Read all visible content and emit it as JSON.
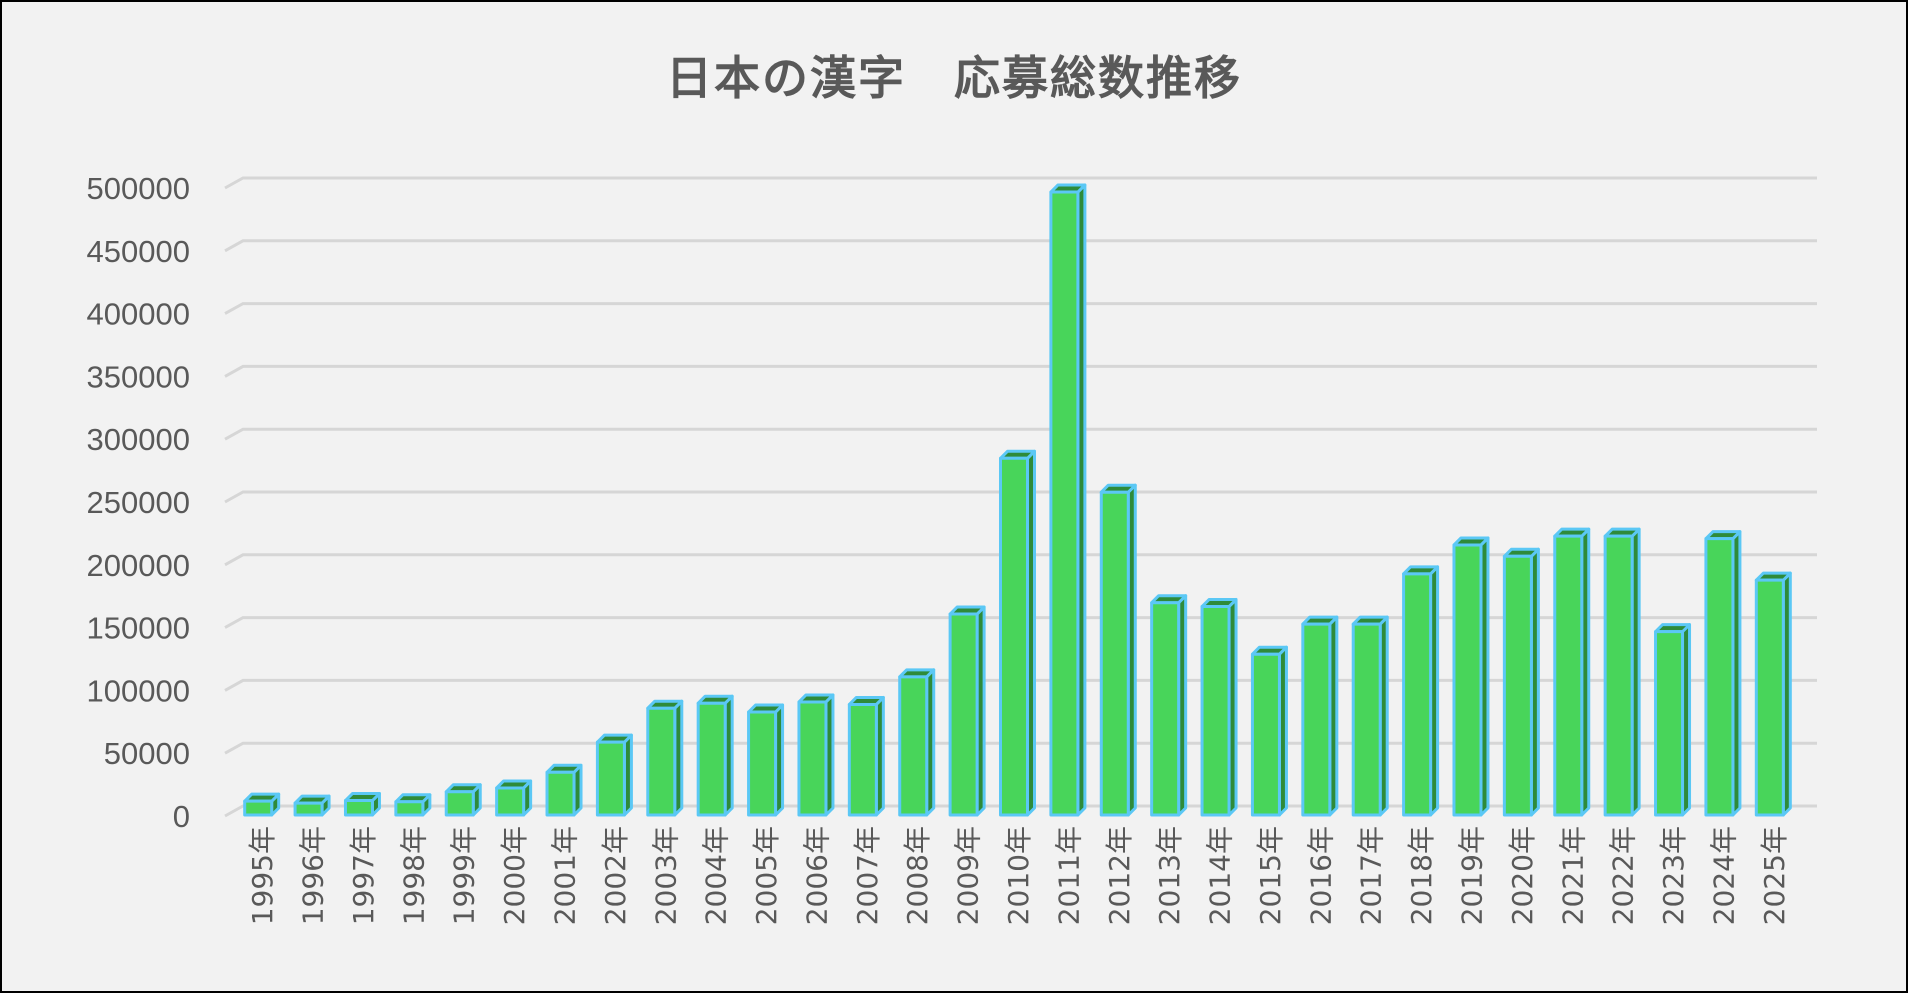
{
  "chart_data": {
    "type": "bar",
    "title": "日本の漢字　応募総数推移",
    "xlabel": "",
    "ylabel": "",
    "ylim": [
      0,
      500000
    ],
    "yticks": [
      "0",
      "50000",
      "100000",
      "150000",
      "200000",
      "250000",
      "300000",
      "350000",
      "400000",
      "450000",
      "500000"
    ],
    "grid": true,
    "legend": "none",
    "categories": [
      "1995年",
      "1996年",
      "1997年",
      "1998年",
      "1999年",
      "2000年",
      "2001年",
      "2002年",
      "2003年",
      "2004年",
      "2005年",
      "2006年",
      "2007年",
      "2008年",
      "2009年",
      "2010年",
      "2011年",
      "2012年",
      "2013年",
      "2014年",
      "2015年",
      "2016年",
      "2017年",
      "2018年",
      "2019年",
      "2020年",
      "2021年",
      "2022年",
      "2023年",
      "2024年",
      "2025年"
    ],
    "values": [
      11000,
      9500,
      11500,
      10500,
      18500,
      21500,
      34000,
      58000,
      85000,
      89000,
      82000,
      90000,
      88000,
      110000,
      160000,
      284000,
      496000,
      257000,
      169000,
      166000,
      128000,
      152000,
      152000,
      192000,
      215000,
      206000,
      222000,
      222000,
      146000,
      220000,
      187000
    ],
    "colors": {
      "bar": "#48d55a",
      "bar_side": "#2e8b3a",
      "bar_outline": "#5bc8f5",
      "grid": "#d6d6d6",
      "text": "#595959"
    }
  }
}
